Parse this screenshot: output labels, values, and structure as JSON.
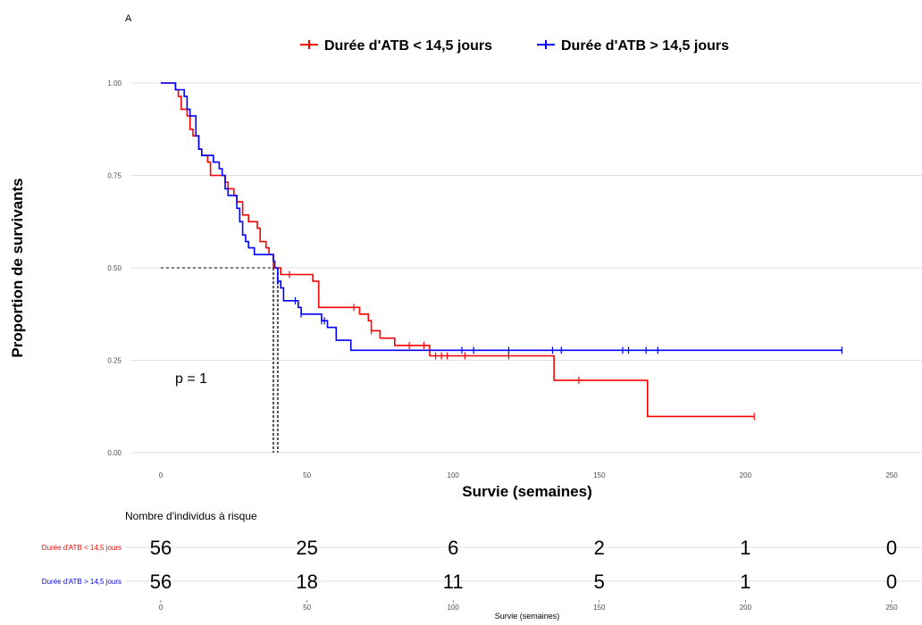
{
  "panel_label": "A",
  "chart_data": {
    "type": "line",
    "subtype": "kaplan-meier",
    "xlabel": "Survie (semaines)",
    "ylabel": "Proportion de survivants",
    "xlim": [
      0,
      250
    ],
    "ylim": [
      0,
      1
    ],
    "x_ticks": [
      0,
      50,
      100,
      150,
      200,
      250
    ],
    "y_ticks": [
      0,
      0.25,
      0.5,
      0.75,
      1
    ],
    "y_tick_labels": [
      "0.00",
      "0.25",
      "0.50",
      "0.75",
      "1.00"
    ],
    "grid": true,
    "legend_position": "top",
    "pvalue_text": "p = 1",
    "median_line": {
      "y": 0.5,
      "x_values": [
        38.5,
        40
      ]
    },
    "series": [
      {
        "name": "Durée d'ATB < 14,5 jours",
        "color": "#ff0000",
        "steps": [
          [
            0,
            1.0
          ],
          [
            5,
            0.982
          ],
          [
            6,
            0.964
          ],
          [
            7,
            0.929
          ],
          [
            9,
            0.911
          ],
          [
            10,
            0.875
          ],
          [
            11,
            0.857
          ],
          [
            13,
            0.821
          ],
          [
            14,
            0.804
          ],
          [
            16,
            0.786
          ],
          [
            17,
            0.75
          ],
          [
            22,
            0.732
          ],
          [
            23,
            0.714
          ],
          [
            25,
            0.696
          ],
          [
            26,
            0.679
          ],
          [
            28,
            0.643
          ],
          [
            30,
            0.625
          ],
          [
            33,
            0.607
          ],
          [
            34,
            0.571
          ],
          [
            36,
            0.554
          ],
          [
            37,
            0.536
          ],
          [
            38.5,
            0.5
          ],
          [
            40,
            0.5
          ],
          [
            41,
            0.482
          ],
          [
            45,
            0.482
          ],
          [
            47,
            0.482
          ],
          [
            52,
            0.464
          ],
          [
            54,
            0.393
          ],
          [
            66,
            0.393
          ],
          [
            68,
            0.375
          ],
          [
            71,
            0.357
          ],
          [
            72,
            0.33
          ],
          [
            75,
            0.31
          ],
          [
            80,
            0.29
          ],
          [
            92,
            0.262
          ],
          [
            134,
            0.262
          ],
          [
            134.5,
            0.196
          ],
          [
            166,
            0.196
          ],
          [
            166.5,
            0.098
          ],
          [
            203,
            0.098
          ]
        ],
        "censor": [
          [
            44,
            0.482
          ],
          [
            66,
            0.393
          ],
          [
            72,
            0.33
          ],
          [
            85,
            0.29
          ],
          [
            90,
            0.29
          ],
          [
            94,
            0.262
          ],
          [
            96,
            0.262
          ],
          [
            98,
            0.262
          ],
          [
            104,
            0.262
          ],
          [
            119,
            0.262
          ],
          [
            143,
            0.196
          ],
          [
            203,
            0.098
          ]
        ]
      },
      {
        "name": "Durée d'ATB > 14,5 jours",
        "color": "#0000ff",
        "steps": [
          [
            0,
            1.0
          ],
          [
            5,
            0.982
          ],
          [
            8,
            0.964
          ],
          [
            9,
            0.929
          ],
          [
            10,
            0.911
          ],
          [
            12,
            0.857
          ],
          [
            13,
            0.821
          ],
          [
            14,
            0.804
          ],
          [
            18,
            0.786
          ],
          [
            20,
            0.768
          ],
          [
            21,
            0.75
          ],
          [
            22,
            0.714
          ],
          [
            23,
            0.696
          ],
          [
            26,
            0.661
          ],
          [
            27,
            0.625
          ],
          [
            28,
            0.589
          ],
          [
            29,
            0.571
          ],
          [
            30,
            0.554
          ],
          [
            32,
            0.536
          ],
          [
            38.5,
            0.518
          ],
          [
            39,
            0.5
          ],
          [
            40,
            0.464
          ],
          [
            41,
            0.446
          ],
          [
            42,
            0.411
          ],
          [
            47,
            0.393
          ],
          [
            48,
            0.375
          ],
          [
            55,
            0.357
          ],
          [
            57,
            0.339
          ],
          [
            60,
            0.304
          ],
          [
            65,
            0.277
          ],
          [
            233,
            0.277
          ]
        ],
        "censor": [
          [
            40,
            0.464
          ],
          [
            46,
            0.411
          ],
          [
            48,
            0.375
          ],
          [
            55,
            0.357
          ],
          [
            56,
            0.357
          ],
          [
            103,
            0.277
          ],
          [
            107,
            0.277
          ],
          [
            119,
            0.277
          ],
          [
            134,
            0.277
          ],
          [
            137,
            0.277
          ],
          [
            158,
            0.277
          ],
          [
            160,
            0.277
          ],
          [
            166,
            0.277
          ],
          [
            170,
            0.277
          ],
          [
            233,
            0.277
          ]
        ]
      }
    ]
  },
  "risk_table": {
    "title": "Nombre d'individus à risque",
    "xlabel": "Survie (semaines)",
    "times": [
      0,
      50,
      100,
      150,
      200,
      250
    ],
    "time_labels": [
      "0",
      "50",
      "100",
      "150",
      "200",
      "250"
    ],
    "rows": [
      {
        "label": "Durée d'ATB < 14,5 jours",
        "color": "#ff0000",
        "counts": [
          "56",
          "25",
          "6",
          "2",
          "1",
          "0"
        ]
      },
      {
        "label": "Durée d'ATB > 14,5 jours",
        "color": "#0000ff",
        "counts": [
          "56",
          "18",
          "11",
          "5",
          "1",
          "0"
        ]
      }
    ]
  }
}
